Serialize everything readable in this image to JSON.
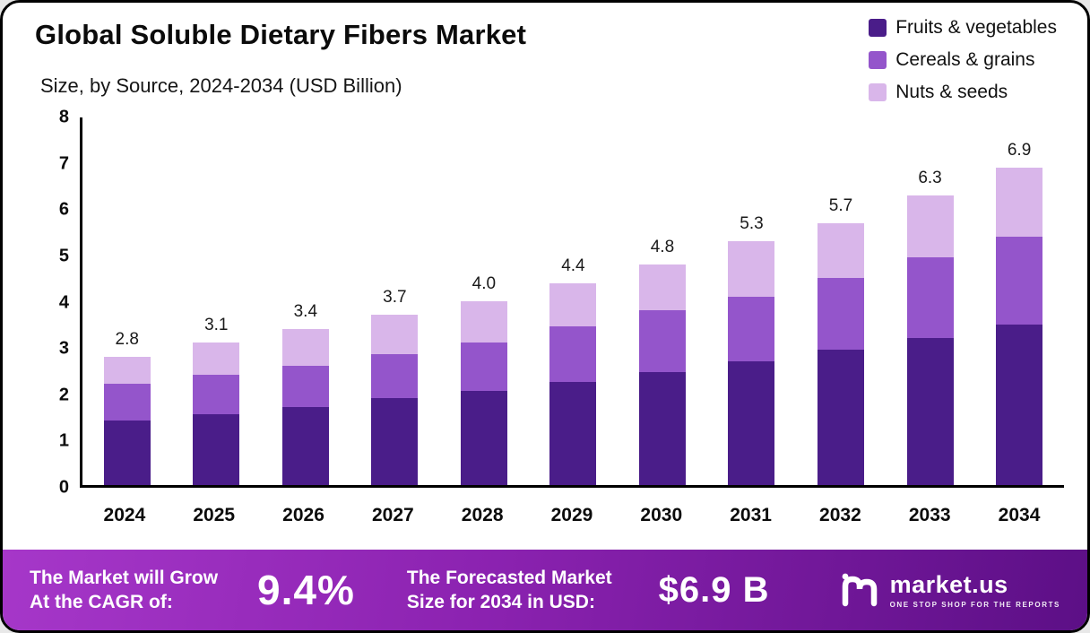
{
  "header": {
    "title": "Global Soluble Dietary Fibers Market",
    "subtitle": "Size, by Source, 2024-2034 (USD Billion)"
  },
  "legend": [
    {
      "label": "Fruits & vegetables",
      "color": "#4a1d89"
    },
    {
      "label": "Cereals & grains",
      "color": "#9455cb"
    },
    {
      "label": "Nuts & seeds",
      "color": "#d9b6ea"
    }
  ],
  "chart_data": {
    "type": "bar",
    "stacked": true,
    "title": "Global Soluble Dietary Fibers Market Size, by Source, 2024-2034 (USD Billion)",
    "xlabel": "",
    "ylabel": "",
    "ylim": [
      0,
      8
    ],
    "yticks": [
      0,
      1,
      2,
      3,
      4,
      5,
      6,
      7,
      8
    ],
    "grid": false,
    "legend_position": "top-right",
    "categories": [
      "2024",
      "2025",
      "2026",
      "2027",
      "2028",
      "2029",
      "2030",
      "2031",
      "2032",
      "2033",
      "2034"
    ],
    "series": [
      {
        "name": "Fruits & vegetables",
        "color": "#4a1d89",
        "values": [
          1.4,
          1.55,
          1.7,
          1.9,
          2.05,
          2.25,
          2.45,
          2.7,
          2.95,
          3.2,
          3.5
        ]
      },
      {
        "name": "Cereals & grains",
        "color": "#9455cb",
        "values": [
          0.8,
          0.85,
          0.9,
          0.95,
          1.05,
          1.2,
          1.35,
          1.4,
          1.55,
          1.75,
          1.9
        ]
      },
      {
        "name": "Nuts & seeds",
        "color": "#d9b6ea",
        "values": [
          0.6,
          0.7,
          0.8,
          0.85,
          0.9,
          0.95,
          1.0,
          1.2,
          1.2,
          1.35,
          1.5
        ]
      }
    ],
    "totals": [
      2.8,
      3.1,
      3.4,
      3.7,
      4.0,
      4.4,
      4.8,
      5.3,
      5.7,
      6.3,
      6.9
    ]
  },
  "footer": {
    "cagr_label_line1": "The Market will Grow",
    "cagr_label_line2": "At the CAGR of:",
    "cagr_value": "9.4%",
    "forecast_label_line1": "The Forecasted Market",
    "forecast_label_line2": "Size for 2034 in USD:",
    "forecast_value": "$6.9 B",
    "brand_name": "market.us",
    "brand_tagline": "ONE STOP SHOP FOR THE REPORTS"
  }
}
